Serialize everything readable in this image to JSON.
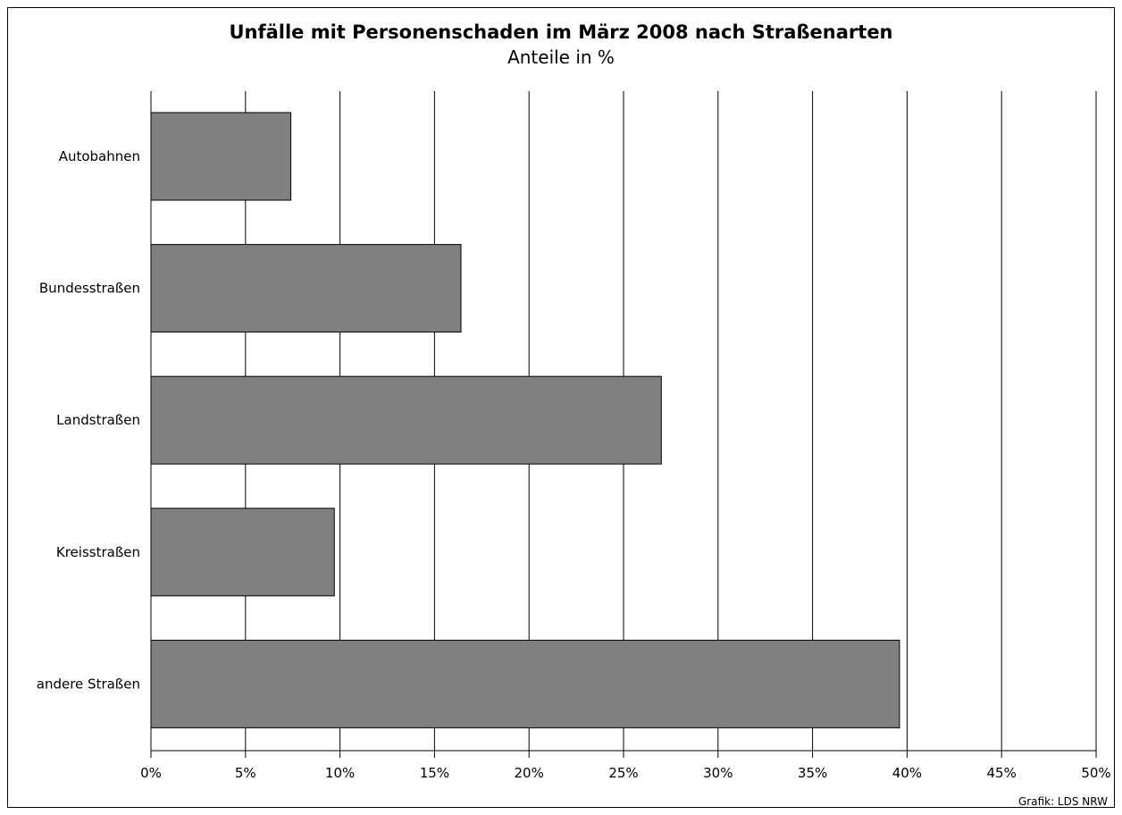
{
  "chart_data": {
    "type": "bar",
    "orientation": "horizontal",
    "title": "Unfälle mit Personenschaden im März 2008 nach Straßenarten",
    "subtitle": "Anteile in %",
    "categories": [
      "Autobahnen",
      "Bundesstraßen",
      "Landstraßen",
      "Kreisstraßen",
      "andere Straßen"
    ],
    "values": [
      7.4,
      16.4,
      27.0,
      9.7,
      39.6
    ],
    "xlim": [
      0,
      50
    ],
    "xticks": [
      0,
      5,
      10,
      15,
      20,
      25,
      30,
      35,
      40,
      45,
      50
    ],
    "xtick_labels": [
      "0%",
      "5%",
      "10%",
      "15%",
      "20%",
      "25%",
      "30%",
      "35%",
      "40%",
      "45%",
      "50%"
    ],
    "grid": "vertical",
    "bar_color": "#808080",
    "source": "Grafik: LDS NRW"
  }
}
